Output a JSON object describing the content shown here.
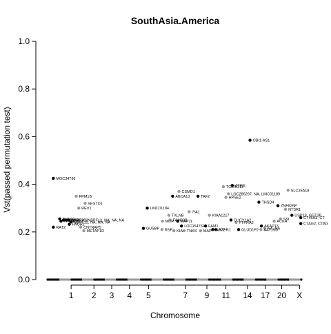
{
  "chart_data": {
    "type": "scatter",
    "title": "SouthAsia.America",
    "xlabel": "Chromosome",
    "ylabel": "Vst(passed permutation test)",
    "ylim": [
      0.0,
      1.0
    ],
    "yticks": [
      "0.0",
      "0.2",
      "0.4",
      "0.6",
      "0.8",
      "1.0"
    ],
    "grid": false,
    "legend": "none",
    "chromosome_ticks": [
      {
        "label": "1",
        "x": 0.09
      },
      {
        "label": "2",
        "x": 0.18
      },
      {
        "label": "3",
        "x": 0.25
      },
      {
        "label": "4",
        "x": 0.32
      },
      {
        "label": "5",
        "x": 0.395
      },
      {
        "label": "7",
        "x": 0.54
      },
      {
        "label": "9",
        "x": 0.625
      },
      {
        "label": "11",
        "x": 0.7
      },
      {
        "label": "14",
        "x": 0.785
      },
      {
        "label": "17",
        "x": 0.855
      },
      {
        "label": "20",
        "x": 0.92
      },
      {
        "label": "X",
        "x": 0.99
      }
    ],
    "colors": {
      "odd_chromosome": "#000000",
      "even_chromosome": "#999999"
    },
    "points": [
      {
        "gene": "MGC34796",
        "x": 0.02,
        "y": 0.425,
        "shade": "odd"
      },
      {
        "gene": "RAT2",
        "x": 0.02,
        "y": 0.22,
        "shade": "odd"
      },
      {
        "gene": "PLEKG",
        "x": 0.045,
        "y": 0.255,
        "shade": "odd"
      },
      {
        "gene": "PRKACB",
        "x": 0.05,
        "y": 0.245,
        "shade": "odd"
      },
      {
        "gene": "EPHA8",
        "x": 0.06,
        "y": 0.25,
        "shade": "odd"
      },
      {
        "gene": "LINC02812",
        "x": 0.07,
        "y": 0.25,
        "shade": "odd"
      },
      {
        "gene": "NBPF20, NBPF12, NA, NA, NA",
        "x": 0.08,
        "y": 0.25,
        "shade": "odd"
      },
      {
        "gene": "NBPF12, NA, NA, NA",
        "x": 0.09,
        "y": 0.242,
        "shade": "odd"
      },
      {
        "gene": "PAGR1",
        "x": 0.083,
        "y": 0.232,
        "shade": "odd"
      },
      {
        "gene": "PPM1B",
        "x": 0.11,
        "y": 0.35,
        "shade": "even"
      },
      {
        "gene": "SESTD1",
        "x": 0.145,
        "y": 0.32,
        "shade": "even"
      },
      {
        "gene": "REV1",
        "x": 0.12,
        "y": 0.3,
        "shade": "even"
      },
      {
        "gene": "CNTNAP5",
        "x": 0.128,
        "y": 0.22,
        "shade": "even"
      },
      {
        "gene": "METAP1D",
        "x": 0.14,
        "y": 0.205,
        "shade": "even"
      },
      {
        "gene": "LINC01184",
        "x": 0.39,
        "y": 0.3,
        "shade": "odd"
      },
      {
        "gene": "GUSBP",
        "x": 0.375,
        "y": 0.215,
        "shade": "odd"
      },
      {
        "gene": "ABCA13",
        "x": 0.49,
        "y": 0.35,
        "shade": "odd"
      },
      {
        "gene": "CSMD1",
        "x": 0.515,
        "y": 0.37,
        "shade": "even"
      },
      {
        "gene": "TXLNB",
        "x": 0.475,
        "y": 0.27,
        "shade": "even"
      },
      {
        "gene": "MLIP",
        "x": 0.45,
        "y": 0.245,
        "shade": "even"
      },
      {
        "gene": "FAM83B",
        "x": 0.48,
        "y": 0.25,
        "shade": "even"
      },
      {
        "gene": "RSP",
        "x": 0.448,
        "y": 0.21,
        "shade": "even"
      },
      {
        "gene": "KIA",
        "x": 0.495,
        "y": 0.205,
        "shade": "even"
      },
      {
        "gene": "MAP2L",
        "x": 0.51,
        "y": 0.245,
        "shade": "odd"
      },
      {
        "gene": "LOC154761",
        "x": 0.525,
        "y": 0.225,
        "shade": "odd"
      },
      {
        "gene": "TNKS",
        "x": 0.535,
        "y": 0.205,
        "shade": "even"
      },
      {
        "gene": "IYA1",
        "x": 0.555,
        "y": 0.285,
        "shade": "even"
      },
      {
        "gene": "TAF2",
        "x": 0.59,
        "y": 0.35,
        "shade": "odd"
      },
      {
        "gene": "KIAA1217",
        "x": 0.635,
        "y": 0.27,
        "shade": "even"
      },
      {
        "gene": "FAM1",
        "x": 0.62,
        "y": 0.225,
        "shade": "odd"
      },
      {
        "gene": "MAP",
        "x": 0.6,
        "y": 0.205,
        "shade": "even"
      },
      {
        "gene": "NAV2",
        "x": 0.648,
        "y": 0.21,
        "shade": "odd"
      },
      {
        "gene": "TCERG1L",
        "x": 0.69,
        "y": 0.39,
        "shade": "even"
      },
      {
        "gene": "ATP8L",
        "x": 0.725,
        "y": 0.395,
        "shade": "odd"
      },
      {
        "gene": "LOC286297, NA, LINC01189",
        "x": 0.71,
        "y": 0.36,
        "shade": "even"
      },
      {
        "gene": "HPSE2",
        "x": 0.7,
        "y": 0.345,
        "shade": "even"
      },
      {
        "gene": "PTPRJ",
        "x": 0.66,
        "y": 0.21,
        "shade": "odd"
      },
      {
        "gene": "CUCY1A2",
        "x": 0.72,
        "y": 0.25,
        "shade": "odd"
      },
      {
        "gene": "PTPRA2",
        "x": 0.74,
        "y": 0.24,
        "shade": "even"
      },
      {
        "gene": "GLUD1P2",
        "x": 0.75,
        "y": 0.21,
        "shade": "odd"
      },
      {
        "gene": "OBI1-AS1",
        "x": 0.795,
        "y": 0.585,
        "shade": "odd"
      },
      {
        "gene": "THSD4",
        "x": 0.83,
        "y": 0.325,
        "shade": "odd"
      },
      {
        "gene": "AKAP13",
        "x": 0.84,
        "y": 0.225,
        "shade": "odd"
      },
      {
        "gene": "AAT1SD",
        "x": 0.838,
        "y": 0.21,
        "shade": "even"
      },
      {
        "gene": "NA, NA",
        "x": 0.853,
        "y": 0.215,
        "shade": "even"
      },
      {
        "gene": "ZNF826P",
        "x": 0.905,
        "y": 0.31,
        "shade": "odd"
      },
      {
        "gene": "NTSR1",
        "x": 0.935,
        "y": 0.295,
        "shade": "even"
      },
      {
        "gene": "SLC25A18",
        "x": 0.945,
        "y": 0.375,
        "shade": "even"
      },
      {
        "gene": "ACKA",
        "x": 0.89,
        "y": 0.245,
        "shade": "even"
      },
      {
        "gene": "SSI",
        "x": 0.915,
        "y": 0.255,
        "shade": "even"
      },
      {
        "gene": "USP18, GGT3P",
        "x": 0.96,
        "y": 0.27,
        "shade": "odd"
      },
      {
        "gene": "CT45A3, CT",
        "x": 0.995,
        "y": 0.26,
        "shade": "odd"
      },
      {
        "gene": "CTAG2, CTAG",
        "x": 0.995,
        "y": 0.235,
        "shade": "odd"
      }
    ],
    "baseline_points": 180
  }
}
